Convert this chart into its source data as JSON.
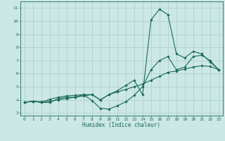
{
  "title": "",
  "xlabel": "Humidex (Indice chaleur)",
  "xlim": [
    -0.5,
    23.5
  ],
  "ylim": [
    2.8,
    11.5
  ],
  "xticks": [
    0,
    1,
    2,
    3,
    4,
    5,
    6,
    7,
    8,
    9,
    10,
    11,
    12,
    13,
    14,
    15,
    16,
    17,
    18,
    19,
    20,
    21,
    22,
    23
  ],
  "yticks": [
    3,
    4,
    5,
    6,
    7,
    8,
    9,
    10,
    11
  ],
  "bg_color": "#cce8e4",
  "grid_color": "#aaccc8",
  "line_color": "#1a6b5a",
  "line1_x": [
    0,
    1,
    2,
    3,
    4,
    5,
    6,
    7,
    8,
    9,
    10,
    11,
    12,
    13,
    14,
    15,
    16,
    17,
    18,
    19,
    20,
    21,
    22,
    23
  ],
  "line1_y": [
    3.8,
    3.9,
    3.8,
    3.8,
    4.1,
    4.2,
    4.2,
    4.4,
    3.95,
    3.35,
    3.3,
    3.55,
    3.85,
    4.35,
    5.0,
    6.3,
    7.0,
    7.3,
    6.3,
    6.5,
    7.3,
    7.4,
    7.0,
    6.3
  ],
  "line2_x": [
    0,
    1,
    2,
    3,
    4,
    5,
    6,
    7,
    8,
    9,
    10,
    11,
    12,
    13,
    14,
    15,
    16,
    17,
    18,
    19,
    20,
    21,
    22,
    23
  ],
  "line2_y": [
    3.8,
    3.9,
    3.8,
    4.05,
    4.2,
    4.3,
    4.35,
    4.4,
    4.4,
    4.0,
    4.4,
    4.7,
    5.1,
    5.5,
    4.4,
    10.1,
    10.9,
    10.5,
    7.5,
    7.2,
    7.7,
    7.5,
    6.9,
    6.3
  ],
  "line3_x": [
    0,
    1,
    2,
    3,
    4,
    5,
    6,
    7,
    8,
    9,
    10,
    11,
    12,
    13,
    14,
    15,
    16,
    17,
    18,
    19,
    20,
    21,
    22,
    23
  ],
  "line3_y": [
    3.8,
    3.9,
    3.85,
    3.9,
    4.0,
    4.1,
    4.2,
    4.3,
    4.4,
    4.0,
    4.4,
    4.6,
    4.8,
    5.0,
    5.2,
    5.5,
    5.8,
    6.1,
    6.2,
    6.35,
    6.5,
    6.6,
    6.55,
    6.3
  ],
  "figsize": [
    3.2,
    2.0
  ],
  "dpi": 100
}
